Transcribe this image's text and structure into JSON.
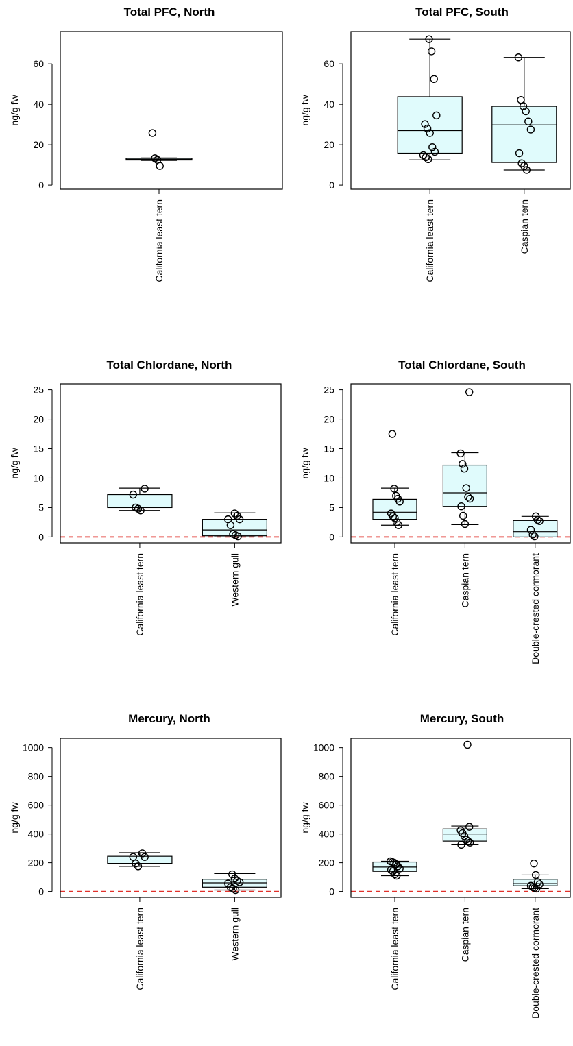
{
  "chart_data": [
    {
      "type": "box",
      "title": "Total PFC, North",
      "ylabel": "ng/g fw",
      "ylim": [
        -2,
        76
      ],
      "yticks": [
        0,
        20,
        40,
        60
      ],
      "reference_line": null,
      "categories": [
        "California least tern"
      ],
      "boxes": [
        {
          "category": "California least tern",
          "min": 12.2,
          "q1": 12.4,
          "median": 12.8,
          "q3": 13.3,
          "max": 13.5,
          "points": [
            25.8,
            13.3,
            12.5,
            9.5
          ]
        }
      ]
    },
    {
      "type": "box",
      "title": "Total PFC, South",
      "ylabel": "ng/g fw",
      "ylim": [
        -2,
        76
      ],
      "yticks": [
        0,
        20,
        40,
        60
      ],
      "reference_line": null,
      "categories": [
        "California least tern",
        "Caspian tern"
      ],
      "boxes": [
        {
          "category": "California least tern",
          "min": 12.5,
          "q1": 15.8,
          "median": 27.0,
          "q3": 43.8,
          "max": 72.2,
          "points": [
            72.2,
            66.2,
            52.5,
            34.5,
            30.2,
            28.0,
            25.8,
            18.8,
            16.5,
            14.8,
            13.8,
            12.8
          ]
        },
        {
          "category": "Caspian tern",
          "min": 7.5,
          "q1": 11.2,
          "median": 29.8,
          "q3": 39.0,
          "max": 63.2,
          "points": [
            63.2,
            42.2,
            39.0,
            36.5,
            31.5,
            27.5,
            15.8,
            10.8,
            9.5,
            7.5
          ]
        }
      ]
    },
    {
      "type": "box",
      "title": "Total Chlordane, North",
      "ylabel": "ng/g fw",
      "ylim": [
        -1,
        26
      ],
      "yticks": [
        0,
        5,
        10,
        15,
        20,
        25
      ],
      "reference_line": {
        "y": 0,
        "style": "dashed",
        "color": "#e0312b"
      },
      "categories": [
        "California least tern",
        "Western gull"
      ],
      "boxes": [
        {
          "category": "California least tern",
          "min": 4.5,
          "q1": 5.0,
          "median": 5.0,
          "q3": 7.2,
          "max": 8.3,
          "points": [
            8.2,
            7.2,
            5.0,
            4.8,
            4.5
          ]
        },
        {
          "category": "Western gull",
          "min": 0.0,
          "q1": 0.2,
          "median": 1.2,
          "q3": 3.0,
          "max": 4.1,
          "points": [
            4.0,
            3.6,
            3.0,
            3.0,
            2.0,
            0.5,
            0.3,
            0.1
          ]
        }
      ]
    },
    {
      "type": "box",
      "title": "Total Chlordane, South",
      "ylabel": "ng/g fw",
      "ylim": [
        -1,
        26
      ],
      "yticks": [
        0,
        5,
        10,
        15,
        20,
        25
      ],
      "reference_line": {
        "y": 0,
        "style": "dashed",
        "color": "#e0312b"
      },
      "categories": [
        "California least tern",
        "Caspian tern",
        "Double-crested cormorant"
      ],
      "boxes": [
        {
          "category": "California least tern",
          "min": 2.0,
          "q1": 3.0,
          "median": 4.2,
          "q3": 6.4,
          "max": 8.3,
          "points": [
            17.5,
            8.2,
            7.0,
            6.5,
            6.0,
            4.0,
            3.5,
            3.2,
            2.5,
            2.0
          ]
        },
        {
          "category": "Caspian tern",
          "min": 2.1,
          "q1": 5.2,
          "median": 7.5,
          "q3": 12.2,
          "max": 14.3,
          "points": [
            24.6,
            14.2,
            12.4,
            11.6,
            8.3,
            6.8,
            6.5,
            5.2,
            3.6,
            2.2
          ]
        },
        {
          "category": "Double-crested cormorant",
          "min": 0.0,
          "q1": 0.0,
          "median": 0.9,
          "q3": 2.8,
          "max": 3.5,
          "points": [
            3.5,
            2.9,
            2.7,
            1.2,
            0.4,
            0.1
          ]
        }
      ]
    },
    {
      "type": "box",
      "title": "Mercury, North",
      "ylabel": "ng/g fw",
      "ylim": [
        -40,
        1065
      ],
      "yticks": [
        0,
        200,
        400,
        600,
        800,
        1000
      ],
      "reference_line": {
        "y": 0,
        "style": "dashed",
        "color": "#e0312b"
      },
      "categories": [
        "California least tern",
        "Western gull"
      ],
      "boxes": [
        {
          "category": "California least tern",
          "min": 175,
          "q1": 195,
          "median": 195,
          "q3": 245,
          "max": 270,
          "points": [
            265,
            240,
            240,
            195,
            175
          ]
        },
        {
          "category": "Western gull",
          "min": 10,
          "q1": 30,
          "median": 60,
          "q3": 85,
          "max": 125,
          "points": [
            120,
            90,
            75,
            65,
            55,
            30,
            20,
            10
          ]
        }
      ]
    },
    {
      "type": "box",
      "title": "Mercury, South",
      "ylabel": "ng/g fw",
      "ylim": [
        -40,
        1065
      ],
      "yticks": [
        0,
        200,
        400,
        600,
        800,
        1000
      ],
      "reference_line": {
        "y": 0,
        "style": "dashed",
        "color": "#e0312b"
      },
      "categories": [
        "California least tern",
        "Caspian tern",
        "Double-crested cormorant"
      ],
      "boxes": [
        {
          "category": "California least tern",
          "min": 110,
          "q1": 140,
          "median": 170,
          "q3": 205,
          "max": 210,
          "points": [
            210,
            205,
            200,
            190,
            175,
            160,
            150,
            140,
            120,
            110
          ]
        },
        {
          "category": "Caspian tern",
          "min": 325,
          "q1": 350,
          "median": 400,
          "q3": 435,
          "max": 455,
          "points": [
            1020,
            450,
            425,
            405,
            385,
            360,
            350,
            340,
            325
          ]
        },
        {
          "category": "Double-crested cormorant",
          "min": 20,
          "q1": 40,
          "median": 55,
          "q3": 85,
          "max": 115,
          "points": [
            195,
            115,
            65,
            50,
            40,
            30,
            25,
            20
          ]
        }
      ]
    }
  ],
  "colors": {
    "box_fill": "#e0fbfc",
    "stroke": "#000000",
    "reference_line": "#e0312b"
  }
}
